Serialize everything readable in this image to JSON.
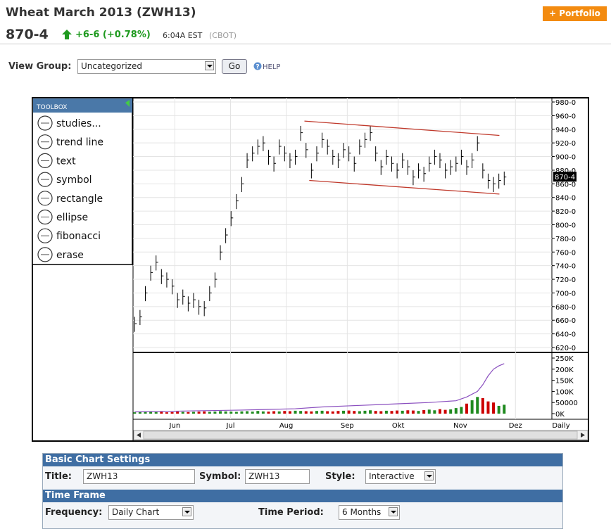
{
  "header": {
    "title": "Wheat March 2013 (ZWH13)",
    "portfolio_button": "+ Portfolio",
    "last": "870-4",
    "change": "+6-6 (+0.78%)",
    "time": "6:04A EST",
    "exchange": "(CBOT)"
  },
  "view_group": {
    "label": "View Group:",
    "selected": "Uncategorized",
    "go": "Go",
    "help": "HELP"
  },
  "toolbox": {
    "title": "TOOLBOX",
    "items": [
      "studies...",
      "trend line",
      "text",
      "symbol",
      "rectangle",
      "ellipse",
      "fibonacci",
      "erase"
    ]
  },
  "chart_data": [
    {
      "type": "ohlc",
      "color": "#000000",
      "grid": true,
      "high": [
        665,
        675,
        710,
        740,
        755,
        735,
        730,
        720,
        700,
        705,
        695,
        700,
        690,
        688,
        710,
        730,
        770,
        795,
        820,
        845,
        870,
        905,
        915,
        925,
        930,
        910,
        900,
        925,
        915,
        905,
        910,
        945,
        920,
        890,
        915,
        935,
        925,
        910,
        905,
        920,
        915,
        900,
        925,
        935,
        945,
        915,
        895,
        910,
        900,
        890,
        905,
        895,
        880,
        890,
        885,
        900,
        910,
        905,
        890,
        895,
        900,
        910,
        895,
        905,
        930,
        890,
        875,
        870,
        875,
        878
      ],
      "low": [
        643,
        653,
        688,
        718,
        733,
        713,
        708,
        698,
        678,
        683,
        673,
        678,
        668,
        666,
        688,
        708,
        748,
        773,
        798,
        823,
        848,
        883,
        893,
        903,
        908,
        888,
        878,
        903,
        893,
        883,
        888,
        923,
        898,
        868,
        893,
        913,
        903,
        888,
        883,
        898,
        893,
        878,
        903,
        913,
        923,
        893,
        873,
        888,
        878,
        868,
        883,
        873,
        858,
        868,
        863,
        878,
        888,
        883,
        868,
        873,
        878,
        888,
        873,
        883,
        908,
        868,
        853,
        848,
        853,
        858
      ],
      "close": [
        655,
        665,
        700,
        730,
        745,
        725,
        720,
        710,
        690,
        695,
        685,
        690,
        680,
        678,
        700,
        720,
        760,
        785,
        810,
        835,
        860,
        895,
        905,
        915,
        920,
        900,
        890,
        915,
        905,
        895,
        900,
        935,
        910,
        880,
        905,
        925,
        915,
        900,
        895,
        910,
        905,
        890,
        915,
        925,
        935,
        905,
        885,
        900,
        890,
        880,
        895,
        885,
        870,
        880,
        875,
        890,
        900,
        895,
        880,
        885,
        890,
        900,
        885,
        895,
        920,
        880,
        865,
        860,
        865,
        870
      ],
      "xlim": [
        -0.3,
        77.9
      ],
      "xticks": [
        {
          "value": 7.5,
          "label": "Jun"
        },
        {
          "value": 17.9,
          "label": "Jul"
        },
        {
          "value": 28.3,
          "label": "Aug"
        },
        {
          "value": 39.7,
          "label": "Sep"
        },
        {
          "value": 49.2,
          "label": "Okt"
        },
        {
          "value": 60.8,
          "label": "Nov"
        },
        {
          "value": 71.1,
          "label": "Dez"
        }
      ],
      "x_label": "Daily",
      "ylim": [
        620,
        980
      ],
      "yticks": [
        {
          "value": 620,
          "label": "620-0"
        },
        {
          "value": 640,
          "label": "640-0"
        },
        {
          "value": 660,
          "label": "660-0"
        },
        {
          "value": 680,
          "label": "680-0"
        },
        {
          "value": 700,
          "label": "700-0"
        },
        {
          "value": 720,
          "label": "720-0"
        },
        {
          "value": 740,
          "label": "740-0"
        },
        {
          "value": 760,
          "label": "760-0"
        },
        {
          "value": 780,
          "label": "780-0"
        },
        {
          "value": 800,
          "label": "800-0"
        },
        {
          "value": 820,
          "label": "820-0"
        },
        {
          "value": 840,
          "label": "840-0"
        },
        {
          "value": 860,
          "label": "860-0"
        },
        {
          "value": 880,
          "label": "880-0"
        },
        {
          "value": 900,
          "label": "900-0"
        },
        {
          "value": 920,
          "label": "920-0"
        },
        {
          "value": 940,
          "label": "940-0"
        },
        {
          "value": 960,
          "label": "960-0"
        },
        {
          "value": 980,
          "label": "980-0"
        }
      ],
      "last_price": {
        "value": 870.5,
        "label": "870-4"
      },
      "trend_lines": [
        {
          "x": [
            31.7,
            68.1
          ],
          "values": [
            952,
            931
          ],
          "color": "#c0392b"
        },
        {
          "x": [
            32.6,
            68.1
          ],
          "values": [
            865,
            845
          ],
          "color": "#c0392b"
        }
      ]
    },
    {
      "type": "volume",
      "up_color": "#1f8a1f",
      "down_color": "#cc0000",
      "values": [
        6000,
        7000,
        8000,
        9000,
        7000,
        8000,
        6000,
        7000,
        9000,
        8000,
        7000,
        8000,
        9000,
        10000,
        8000,
        9000,
        11000,
        10000,
        9000,
        8000,
        10000,
        11000,
        9000,
        12000,
        10000,
        9000,
        11000,
        10000,
        12000,
        11000,
        13000,
        12000,
        11000,
        10000,
        12000,
        13000,
        11000,
        10000,
        12000,
        13000,
        14000,
        12000,
        11000,
        13000,
        15000,
        12000,
        11000,
        13000,
        12000,
        14000,
        13000,
        15000,
        14000,
        12000,
        16000,
        18000,
        15000,
        20000,
        17000,
        19000,
        25000,
        30000,
        45000,
        60000,
        75000,
        70000,
        55000,
        50000,
        35000,
        40000
      ],
      "xlim": [
        -0.3,
        77.9
      ],
      "ylim": [
        0,
        250000
      ],
      "yticks": [
        {
          "value": 0,
          "label": "0K"
        },
        50000,
        {
          "value": 100000,
          "label": "100K"
        },
        {
          "value": 150000,
          "label": "150K"
        },
        {
          "value": 200000,
          "label": "200K"
        },
        {
          "value": 250000,
          "label": "250K"
        }
      ],
      "open_interest": {
        "color": "#8a4fbf",
        "x": [
          0,
          10,
          20,
          30,
          35,
          40,
          45,
          50,
          55,
          60,
          62,
          64,
          65,
          66,
          67,
          68,
          69
        ],
        "values": [
          8000,
          12000,
          16000,
          22000,
          30000,
          35000,
          40000,
          45000,
          50000,
          58000,
          75000,
          100000,
          130000,
          170000,
          200000,
          215000,
          225000
        ]
      }
    }
  ],
  "settings": {
    "basic": {
      "title": "Basic Chart Settings",
      "title_label": "Title:",
      "title_value": "ZWH13",
      "symbol_label": "Symbol:",
      "symbol_value": "ZWH13",
      "style_label": "Style:",
      "style_value": "Interactive"
    },
    "time_frame": {
      "title": "Time Frame",
      "frequency_label": "Frequency:",
      "frequency_value": "Daily Chart",
      "period_label": "Time Period:",
      "period_value": "6 Months"
    }
  }
}
